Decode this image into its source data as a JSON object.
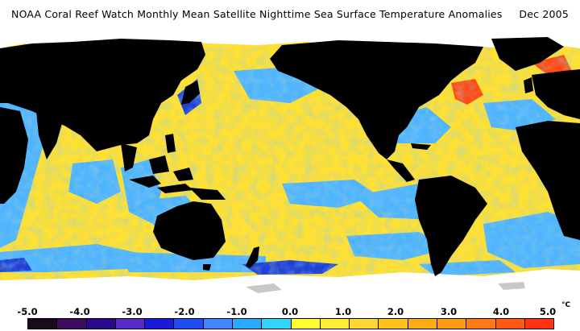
{
  "title": "NOAA Coral Reef Watch Monthly Mean Satellite Nighttime Sea Surface Temperature Anomalies     Dec 2005",
  "colorbar": {
    "ticks": [
      "-5.0",
      "-4.0",
      "-3.0",
      "-2.0",
      "-1.0",
      "0.0",
      "1.0",
      "2.0",
      "3.0",
      "4.0",
      "5.0"
    ],
    "unit": "°C",
    "colors": [
      "#1a0a1e",
      "#3b0d5b",
      "#2a0a8a",
      "#5a2bc8",
      "#1a1ad8",
      "#1f4cf0",
      "#3f86ff",
      "#29aaff",
      "#33d2ff",
      "#ffff33",
      "#ffee33",
      "#ffd633",
      "#ffc21a",
      "#ffac14",
      "#ff9a14",
      "#ff7a14",
      "#ff5a14",
      "#ff3314"
    ]
  },
  "map_colors": {
    "land": "#000000",
    "ice": "#ffffff",
    "sea_ice_grey": "#c8c8c8",
    "warm_anomaly": "#ffe033",
    "cool_anomaly": "#4fb4ff",
    "strong_cool": "#1f40d8",
    "strong_warm": "#ff4a14"
  }
}
